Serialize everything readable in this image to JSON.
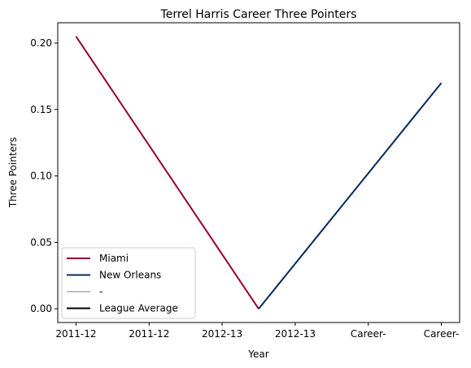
{
  "chart_data": {
    "type": "line",
    "title": "Terrel Harris Career Three Pointers",
    "xlabel": "Year",
    "ylabel": "Three Pointers",
    "categories": [
      "2011-12",
      "2011-12",
      "2012-13",
      "2012-13",
      "Career-",
      "Career-"
    ],
    "ylim": [
      -0.0103,
      0.2153
    ],
    "yticks": [
      0.0,
      0.05,
      0.1,
      0.15,
      0.2
    ],
    "ytick_labels": [
      "0.00",
      "0.05",
      "0.10",
      "0.15",
      "0.20"
    ],
    "grid": false,
    "legend_position": "lower-left",
    "series": [
      {
        "name": "Miami",
        "color": "#98002E",
        "points": [
          [
            0,
            0.205
          ],
          [
            2.5,
            0.0
          ]
        ]
      },
      {
        "name": "New Orleans",
        "color": "#002B5C",
        "points": [
          [
            2.5,
            0.0
          ],
          [
            5,
            0.17
          ]
        ]
      },
      {
        "name": "-",
        "color": "#BEBEBE",
        "points": []
      },
      {
        "name": "League Average",
        "color": "#000000",
        "points": []
      }
    ]
  }
}
